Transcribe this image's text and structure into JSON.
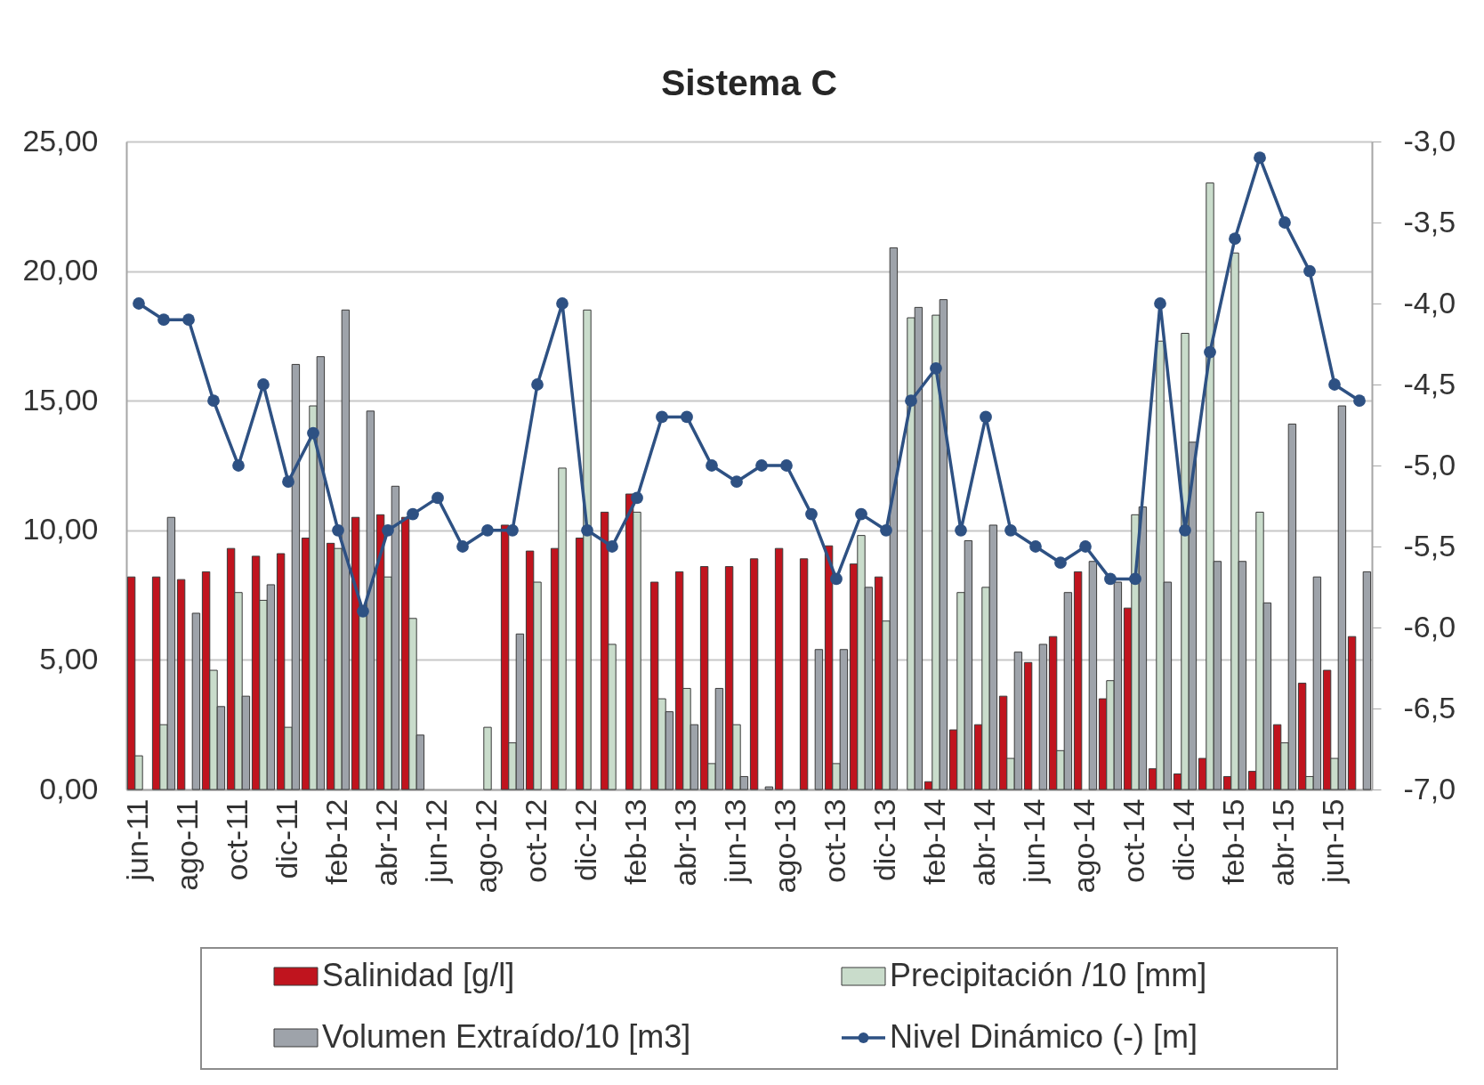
{
  "chart_data": {
    "type": "bar",
    "title": "Sistema C",
    "categories": [
      "jun-11",
      null,
      "ago-11",
      null,
      "oct-11",
      null,
      "dic-11",
      null,
      "feb-12",
      null,
      "abr-12",
      null,
      "jun-12",
      null,
      "ago-12",
      null,
      "oct-12",
      null,
      "dic-12",
      null,
      "feb-13",
      null,
      "abr-13",
      null,
      "jun-13",
      null,
      "ago-13",
      null,
      "oct-13",
      null,
      "dic-13",
      null,
      "feb-14",
      null,
      "abr-14",
      null,
      "jun-14",
      null,
      "ago-14",
      null,
      "oct-14",
      null,
      "dic-14",
      null,
      "feb-15",
      null,
      "abr-15",
      null,
      "jun-15",
      null
    ],
    "series": [
      {
        "name": "Salinidad [g/l]",
        "color": "#c0141e",
        "values": [
          8.2,
          8.2,
          8.1,
          8.4,
          9.3,
          9.0,
          9.1,
          9.7,
          9.5,
          10.5,
          10.6,
          10.5,
          null,
          null,
          null,
          10.2,
          9.2,
          9.3,
          9.7,
          10.7,
          11.4,
          8.0,
          8.4,
          8.6,
          8.6,
          8.9,
          9.3,
          8.9,
          9.4,
          8.7,
          8.2,
          null,
          0.3,
          2.3,
          2.5,
          3.6,
          4.9,
          5.9,
          8.4,
          3.5,
          7.0,
          0.8,
          0.6,
          1.2,
          0.5,
          0.7,
          2.5,
          4.1,
          4.6,
          5.9
        ]
      },
      {
        "name": "Precipitación /10 [mm]",
        "color": "#c9dccb",
        "values": [
          1.3,
          2.5,
          null,
          4.6,
          7.6,
          7.3,
          2.4,
          14.8,
          9.3,
          7.1,
          8.2,
          6.6,
          null,
          null,
          2.4,
          1.8,
          8.0,
          12.4,
          18.5,
          5.6,
          10.7,
          3.5,
          3.9,
          1.0,
          2.5,
          null,
          null,
          null,
          1.0,
          9.8,
          6.5,
          18.2,
          18.3,
          7.6,
          7.8,
          1.2,
          null,
          1.5,
          null,
          4.2,
          10.6,
          17.3,
          17.6,
          23.4,
          20.7,
          10.7,
          1.8,
          0.5,
          1.2,
          null
        ]
      },
      {
        "name": "Volumen Extraído/10 [m3]",
        "color": "#9ea3aa",
        "values": [
          null,
          10.5,
          6.8,
          3.2,
          3.6,
          7.9,
          16.4,
          16.7,
          18.5,
          14.6,
          11.7,
          2.1,
          null,
          null,
          null,
          6.0,
          null,
          null,
          null,
          null,
          null,
          3.0,
          2.5,
          3.9,
          0.5,
          0.1,
          null,
          5.4,
          5.4,
          7.8,
          20.9,
          18.6,
          18.9,
          9.6,
          10.2,
          5.3,
          5.6,
          7.6,
          8.8,
          8.0,
          10.9,
          8.0,
          13.4,
          8.8,
          8.8,
          7.2,
          14.1,
          8.2,
          14.8,
          8.4
        ]
      },
      {
        "name": "Nivel Dinámico (-) [m]",
        "type": "line",
        "axis": "y2",
        "color": "#2e5183",
        "values": [
          -4.0,
          -4.1,
          -4.1,
          -4.6,
          -5.0,
          -4.5,
          -5.1,
          -4.8,
          -5.4,
          -5.9,
          -5.4,
          -5.3,
          -5.2,
          -5.5,
          -5.4,
          -5.4,
          -4.5,
          -4.0,
          -5.4,
          -5.5,
          -5.2,
          -4.7,
          -4.7,
          -5.0,
          -5.1,
          -5.0,
          -5.0,
          -5.3,
          -5.7,
          -5.3,
          -5.4,
          -4.6,
          -4.4,
          -5.4,
          -4.7,
          -5.4,
          -5.5,
          -5.6,
          -5.5,
          -5.7,
          -5.7,
          -4.0,
          -5.4,
          -4.3,
          -3.6,
          -3.1,
          -3.5,
          -3.8,
          -4.5,
          -4.6
        ]
      }
    ],
    "ylim": [
      0,
      25
    ],
    "yticks": [
      {
        "value": 0,
        "label": "0,00"
      },
      {
        "value": 5,
        "label": "5,00"
      },
      {
        "value": 10,
        "label": "10,00"
      },
      {
        "value": 15,
        "label": "15,00"
      },
      {
        "value": 20,
        "label": "20,00"
      },
      {
        "value": 25,
        "label": "25,00"
      }
    ],
    "y2lim": [
      -7,
      -3
    ],
    "y2ticks": [
      {
        "value": -7,
        "label": "-7,0"
      },
      {
        "value": -6.5,
        "label": "-6,5"
      },
      {
        "value": -6,
        "label": "-6,0"
      },
      {
        "value": -5.5,
        "label": "-5,5"
      },
      {
        "value": -5,
        "label": "-5,0"
      },
      {
        "value": -4.5,
        "label": "-4,5"
      },
      {
        "value": -4,
        "label": "-4,0"
      },
      {
        "value": -3.5,
        "label": "-3,5"
      },
      {
        "value": -3,
        "label": "-3,0"
      }
    ],
    "grid": "y",
    "legend": "bottom",
    "marker": "circle",
    "line_style": "solid"
  }
}
